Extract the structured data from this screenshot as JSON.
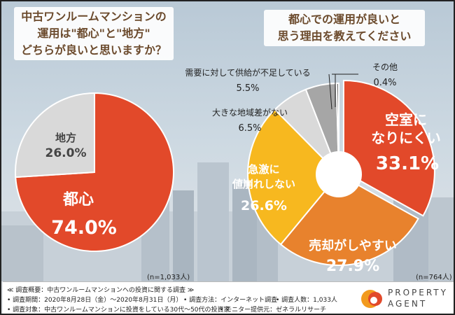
{
  "titles": {
    "left_line1": "中古ワンルームマンションの",
    "left_line2": "運用は\"都心\"と\"地方\"",
    "left_line3": "どちらが良いと思いますか？",
    "right_line1": "都心での運用が良いと",
    "right_line2": "思う理由を教えてください"
  },
  "chart_data": [
    {
      "type": "pie",
      "n_label": "(n=1,033人)",
      "slices": [
        {
          "label": "都心",
          "value": 74.0,
          "color": "#e2492a"
        },
        {
          "label": "地方",
          "value": 26.0,
          "color": "#d9d9d9"
        }
      ]
    },
    {
      "type": "pie",
      "variant": "donut",
      "n_label": "(n=764人)",
      "slices": [
        {
          "label": "空室になりにくい",
          "value": 33.1,
          "color": "#e2492a"
        },
        {
          "label": "売却がしやすい",
          "value": 27.9,
          "color": "#e8822d"
        },
        {
          "label": "急激に値崩れしない",
          "value": 26.6,
          "color": "#f7b81f"
        },
        {
          "label": "大きな地域差がない",
          "value": 6.5,
          "color": "#d9d9d9"
        },
        {
          "label": "需要に対して供給が不足している",
          "value": 5.5,
          "color": "#a6a6a6"
        },
        {
          "label": "その他",
          "value": 0.4,
          "color": "#707070"
        }
      ]
    }
  ],
  "labels": {
    "tokyo": "都心",
    "tokyo_pct": "74.0%",
    "rural": "地方",
    "rural_pct": "26.0%",
    "vacancy_1": "空室に",
    "vacancy_2": "なりにくい",
    "vacancy_pct": "33.1%",
    "sell": "売却がしやすい",
    "sell_pct": "27.9%",
    "price_1": "急激に",
    "price_2": "値崩れしない",
    "price_pct": "26.6%",
    "region": "大きな地域差がない",
    "region_pct": "6.5%",
    "supply": "需要に対して供給が不足している",
    "supply_pct": "5.5%",
    "other": "その他",
    "other_pct": "0.4%"
  },
  "footer": {
    "line1": "≪ 調査概要：中古ワンルームマンションへの投資に関する調査 ≫",
    "period": "• 調査期間：2020年8月28日（金）〜2020年8月31日（月）",
    "method": "• 調査方法：インターネット調査",
    "people": "• 調査人数：1,033人",
    "target": "• 調査対象：中古ワンルームマンションに投資をしている30代〜50代の投資家",
    "monitor": "• モニター提供元：ゼネラルリサーチ",
    "logo_line1": "PROPERTY",
    "logo_line2": "AGENT"
  }
}
